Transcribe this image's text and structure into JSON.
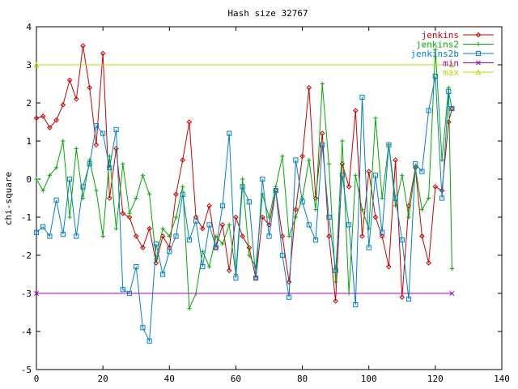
{
  "chart_data": {
    "type": "line",
    "title": "Hash size 32767",
    "xlabel": "",
    "ylabel": "chi-square",
    "xlim": [
      0,
      140
    ],
    "ylim": [
      -5,
      4
    ],
    "xticks": [
      0,
      20,
      40,
      60,
      80,
      100,
      120,
      140
    ],
    "yticks": [
      -5,
      -4,
      -3,
      -2,
      -1,
      0,
      1,
      2,
      3,
      4
    ],
    "grid": false,
    "legend_position": "top-right",
    "series": [
      {
        "name": "jenkins",
        "color": "#cc0000",
        "marker": "diamond",
        "x": [
          0,
          2,
          4,
          6,
          8,
          10,
          12,
          14,
          16,
          18,
          20,
          22,
          24,
          26,
          28,
          30,
          32,
          34,
          36,
          38,
          40,
          42,
          44,
          46,
          48,
          50,
          52,
          54,
          56,
          58,
          60,
          62,
          64,
          66,
          68,
          70,
          72,
          74,
          76,
          78,
          80,
          82,
          84,
          86,
          88,
          90,
          92,
          94,
          96,
          98,
          100,
          102,
          104,
          106,
          108,
          110,
          112,
          114,
          116,
          118,
          120,
          122,
          124,
          125
        ],
        "y": [
          1.6,
          1.65,
          1.35,
          1.55,
          1.95,
          2.6,
          2.1,
          3.5,
          2.4,
          0.9,
          3.3,
          -0.5,
          0.8,
          -0.9,
          -1.0,
          -1.5,
          -1.8,
          -1.3,
          -2.2,
          -1.5,
          -1.8,
          -0.4,
          0.5,
          1.5,
          -1.0,
          -1.3,
          -0.7,
          -1.8,
          -1.2,
          -2.4,
          -1.0,
          -1.5,
          -1.8,
          -2.6,
          -1.0,
          -1.2,
          -0.3,
          -1.5,
          -2.7,
          -0.8,
          0.6,
          2.4,
          -0.5,
          1.2,
          -1.5,
          -3.2,
          0.4,
          -0.2,
          1.8,
          -1.5,
          0.2,
          -1.0,
          -1.5,
          -2.3,
          0.5,
          -3.1,
          -0.7,
          0.3,
          -1.5,
          -2.2,
          -0.2,
          -0.3,
          1.5,
          1.85
        ]
      },
      {
        "name": "jenkins2",
        "color": "#00aa00",
        "marker": "plus",
        "x": [
          0,
          2,
          4,
          6,
          8,
          10,
          12,
          14,
          16,
          18,
          20,
          22,
          24,
          26,
          28,
          30,
          32,
          34,
          36,
          38,
          40,
          42,
          44,
          46,
          48,
          50,
          52,
          54,
          56,
          58,
          60,
          62,
          64,
          66,
          68,
          70,
          72,
          74,
          76,
          78,
          80,
          82,
          84,
          86,
          88,
          90,
          92,
          94,
          96,
          98,
          100,
          102,
          104,
          106,
          108,
          110,
          112,
          114,
          116,
          118,
          120,
          122,
          124,
          125
        ],
        "y": [
          0.0,
          -0.3,
          0.1,
          0.3,
          1.0,
          -1.0,
          0.8,
          -0.5,
          0.5,
          -0.3,
          -1.5,
          0.6,
          -1.3,
          0.4,
          -0.9,
          -0.5,
          0.1,
          -0.4,
          -2.1,
          -1.3,
          -1.5,
          -1.0,
          -0.2,
          -3.4,
          -3.0,
          -1.9,
          -2.3,
          -1.5,
          -1.7,
          -1.2,
          -2.5,
          0.0,
          -2.0,
          -2.3,
          -0.4,
          -1.0,
          -0.2,
          0.6,
          -1.5,
          -1.0,
          -0.5,
          0.5,
          -0.8,
          2.5,
          0.4,
          -2.7,
          1.0,
          -3.0,
          0.1,
          -0.8,
          -1.3,
          1.6,
          -0.5,
          0.9,
          -0.7,
          0.1,
          -1.0,
          0.3,
          -0.8,
          -0.5,
          3.4,
          0.5,
          2.4,
          -2.35
        ]
      },
      {
        "name": "jenkins2b",
        "color": "#0080cc",
        "marker": "square",
        "x": [
          0,
          2,
          4,
          6,
          8,
          10,
          12,
          14,
          16,
          18,
          20,
          22,
          24,
          26,
          28,
          30,
          32,
          34,
          36,
          38,
          40,
          42,
          44,
          46,
          48,
          50,
          52,
          54,
          56,
          58,
          60,
          62,
          64,
          66,
          68,
          70,
          72,
          74,
          76,
          78,
          80,
          82,
          84,
          86,
          88,
          90,
          92,
          94,
          96,
          98,
          100,
          102,
          104,
          106,
          108,
          110,
          112,
          114,
          116,
          118,
          120,
          122,
          124,
          125
        ],
        "y": [
          -1.4,
          -1.25,
          -1.5,
          -0.55,
          -1.45,
          0.0,
          -1.5,
          -0.2,
          0.4,
          1.4,
          1.2,
          0.3,
          1.3,
          -2.9,
          -3.0,
          -2.3,
          -3.9,
          -4.25,
          -1.7,
          -2.5,
          -1.9,
          -1.5,
          -0.4,
          -1.6,
          -1.1,
          -2.3,
          -1.2,
          -1.8,
          -0.7,
          1.2,
          -2.6,
          -0.2,
          -0.6,
          -2.6,
          0.0,
          -1.5,
          -0.3,
          -2.0,
          -3.1,
          0.5,
          -0.6,
          -1.2,
          -1.6,
          0.9,
          -1.0,
          -2.4,
          0.1,
          -1.2,
          -3.3,
          2.15,
          -1.8,
          0.1,
          -1.4,
          0.9,
          -0.5,
          -1.6,
          -3.15,
          0.4,
          0.2,
          1.8,
          2.7,
          -0.5,
          2.3,
          1.85
        ]
      },
      {
        "name": "min",
        "color": "#aa00cc",
        "marker": "x",
        "x": [
          0,
          125
        ],
        "y": [
          -3.0,
          -3.0
        ]
      },
      {
        "name": "max",
        "color": "#bbdd00",
        "marker": "triangle",
        "x": [
          0,
          125
        ],
        "y": [
          3.0,
          3.0
        ]
      }
    ]
  }
}
